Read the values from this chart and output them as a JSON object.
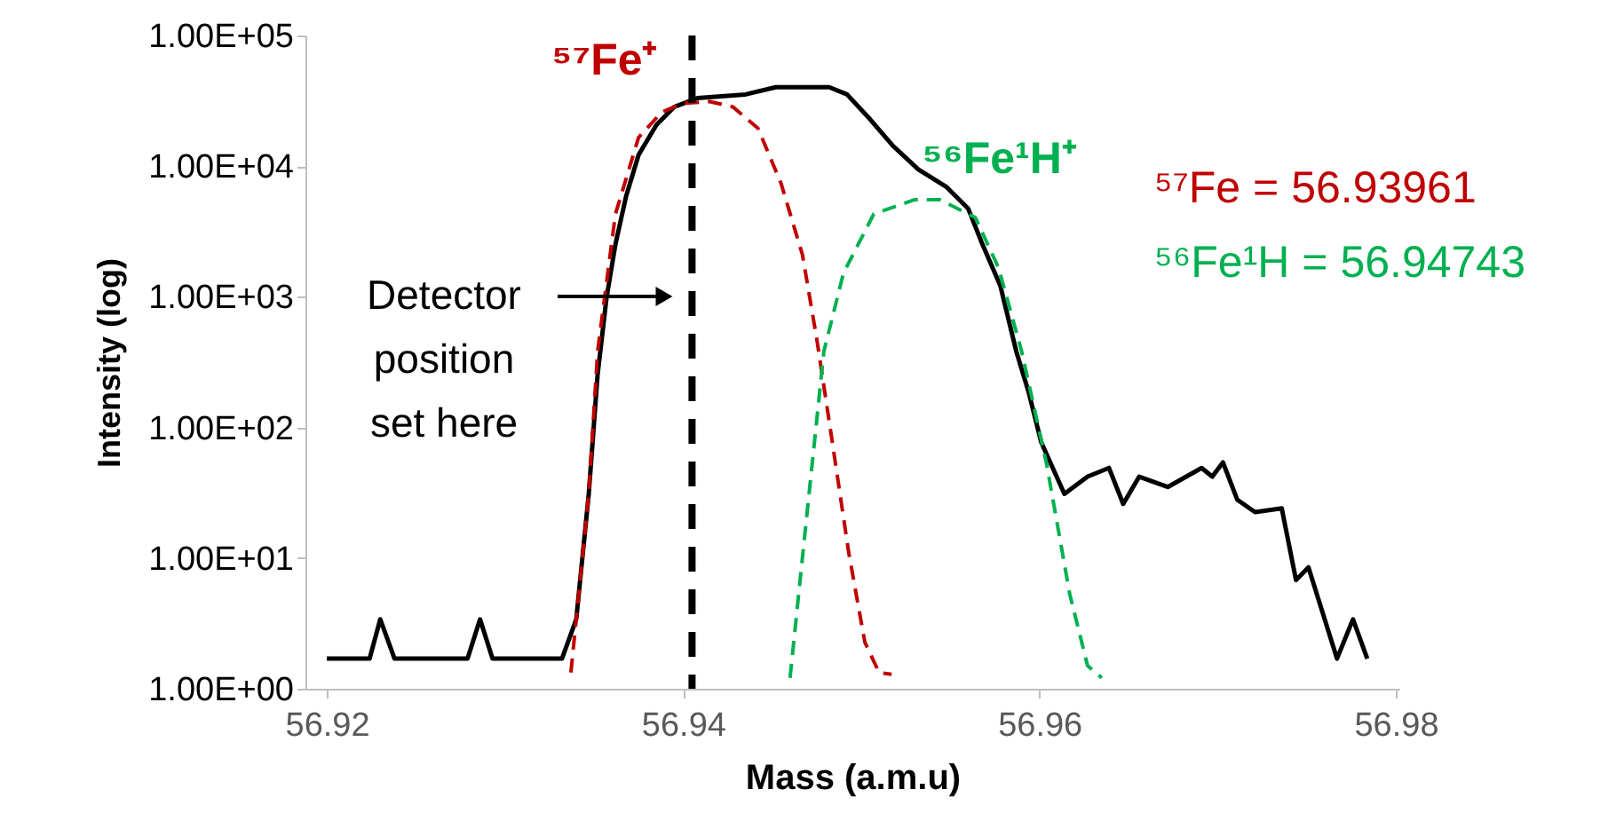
{
  "chart_data": {
    "type": "line",
    "xlabel": "Mass (a.m.u)",
    "ylabel": "Intensity (log)",
    "log": "y",
    "xlim": [
      56.9188,
      56.9802
    ],
    "xticks": [
      56.92,
      56.94,
      56.96,
      56.98
    ],
    "ylim": [
      1,
      100000
    ],
    "yticks": [
      {
        "value": 1,
        "label": "1.00E+00"
      },
      {
        "value": 10,
        "label": "1.00E+01"
      },
      {
        "value": 100,
        "label": "1.00E+02"
      },
      {
        "value": 1000,
        "label": "1.00E+03"
      },
      {
        "value": 10000,
        "label": "1.00E+04"
      },
      {
        "value": 100000,
        "label": "1.00E+05"
      }
    ],
    "grid": false,
    "series": [
      {
        "color": "#000000",
        "line_style": "solid",
        "x": [
          56.92,
          56.9224,
          56.923,
          56.9238,
          56.9279,
          56.9286,
          56.9293,
          56.9332,
          56.934,
          56.9347,
          56.9352,
          56.9357,
          56.9362,
          56.9368,
          56.9375,
          56.9385,
          56.9395,
          56.9408,
          56.9435,
          56.9452,
          56.9482,
          56.9492,
          56.9505,
          56.9518,
          56.9532,
          56.9548,
          56.956,
          56.9568,
          56.9578,
          56.9587,
          56.9594,
          56.9601,
          56.9614,
          56.9627,
          56.9639,
          56.9647,
          56.9656,
          56.9672,
          56.9691,
          56.9697,
          56.9703,
          56.9711,
          56.9721,
          56.9736,
          56.9744,
          56.9751,
          56.9767,
          56.9776,
          56.9784
        ],
        "values": [
          1.7,
          1.7,
          3.4,
          1.7,
          1.7,
          3.4,
          1.7,
          1.7,
          3.4,
          30.8,
          254,
          982,
          2520,
          5900,
          12200,
          20700,
          28400,
          33200,
          35400,
          40200,
          40200,
          35400,
          22800,
          14200,
          9450,
          6900,
          4730,
          2520,
          1220,
          382,
          185,
          77,
          31,
          42,
          49,
          26,
          42,
          35,
          49,
          42,
          54,
          28,
          22.5,
          24,
          6.8,
          8.5,
          1.7,
          3.4,
          1.7
        ]
      },
      {
        "name": "⁵⁷Fe⁺",
        "color": "#c00000",
        "line_style": "dashed",
        "x": [
          56.9337,
          56.934,
          56.9347,
          56.9352,
          56.9362,
          56.9375,
          56.9388,
          56.94,
          56.9415,
          56.9428,
          56.9442,
          56.9455,
          56.9467,
          56.9475,
          56.9483,
          56.9493,
          56.9502,
          56.951,
          56.9517
        ],
        "values": [
          1.33,
          3.4,
          30.8,
          382,
          4300,
          16600,
          25900,
          30300,
          31200,
          28400,
          19500,
          7350,
          2090,
          476,
          90,
          10.9,
          2.27,
          1.33,
          1.29
        ]
      },
      {
        "name": "⁵⁶Fe¹H⁺",
        "color": "#00b050",
        "line_style": "dashed",
        "x": [
          56.946,
          56.9469,
          56.9479,
          56.949,
          56.9507,
          56.953,
          56.9544,
          56.9564,
          56.9577,
          56.959,
          56.9604,
          56.9617,
          56.9627,
          56.9635
        ],
        "values": [
          1.21,
          18.7,
          382,
          1520,
          4300,
          5540,
          5540,
          4040,
          1670,
          382,
          52.6,
          5.3,
          1.5,
          1.21
        ]
      }
    ],
    "ref_lines": [
      {
        "axis": "x",
        "value": 56.9405,
        "color": "#000000",
        "line_style": "dashed"
      }
    ],
    "annotations": [
      "Detector position set here",
      "⁵⁷Fe = 56.93961",
      "⁵⁶Fe¹H = 56.94743"
    ]
  }
}
